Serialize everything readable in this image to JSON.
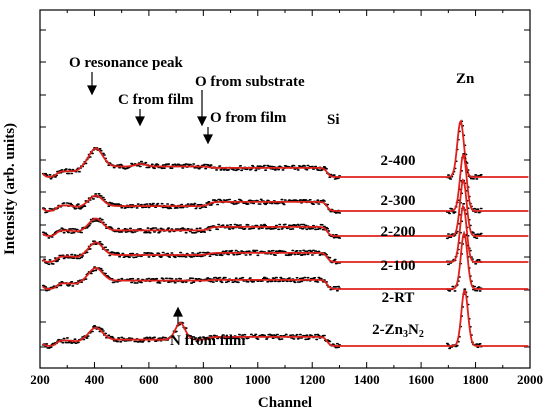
{
  "chart_data": {
    "type": "line",
    "title": "",
    "xlabel": "Channel",
    "ylabel": "Intensity (arb. units)",
    "xlim": [
      200,
      2000
    ],
    "x_ticks": [
      200,
      400,
      600,
      800,
      1000,
      1200,
      1400,
      1600,
      1800,
      2000
    ],
    "yaxis_tick_labels": false,
    "grid": false,
    "legend": "none",
    "colors": {
      "fit": "#e0201b",
      "data": "#000000",
      "axis": "#000000"
    },
    "annotations": {
      "o_resonance": "O resonance peak",
      "c_film": "C from film",
      "o_substrate": "O from substrate",
      "o_film": "O from film",
      "si": "Si",
      "zn": "Zn",
      "n_film": "N from film"
    },
    "series": [
      {
        "label": "2-400",
        "base": 0.6,
        "peak_o": 2.6,
        "plateau": 1.5,
        "zn_peak": 8.0,
        "zn_center": 1745,
        "extra_c": 0.35
      },
      {
        "label": "2-300",
        "base": 0.4,
        "peak_o": 1.5,
        "plateau": 0.7,
        "zn_peak": 8.0,
        "zn_center": 1755,
        "extra_c": 0
      },
      {
        "label": "2-200",
        "base": 0.4,
        "peak_o": 1.7,
        "plateau": 0.8,
        "zn_peak": 8.0,
        "zn_center": 1755,
        "extra_c": 0
      },
      {
        "label": "2-100",
        "base": 0.4,
        "peak_o": 1.8,
        "plateau": 1.0,
        "zn_peak": 8.0,
        "zn_center": 1755,
        "extra_c": 0
      },
      {
        "label": "2-RT",
        "base": 0.4,
        "peak_o": 1.8,
        "plateau": 1.2,
        "zn_peak": 8.0,
        "zn_center": 1758,
        "extra_c": 0
      },
      {
        "label_main": "2-Zn",
        "label_sub1": "3",
        "label_mid": "N",
        "label_sub2": "2",
        "base": 0.4,
        "peak_o": 1.7,
        "plateau": 0.9,
        "zn_peak": 8.0,
        "zn_center": 1760,
        "n_peak": 2.4
      }
    ]
  }
}
